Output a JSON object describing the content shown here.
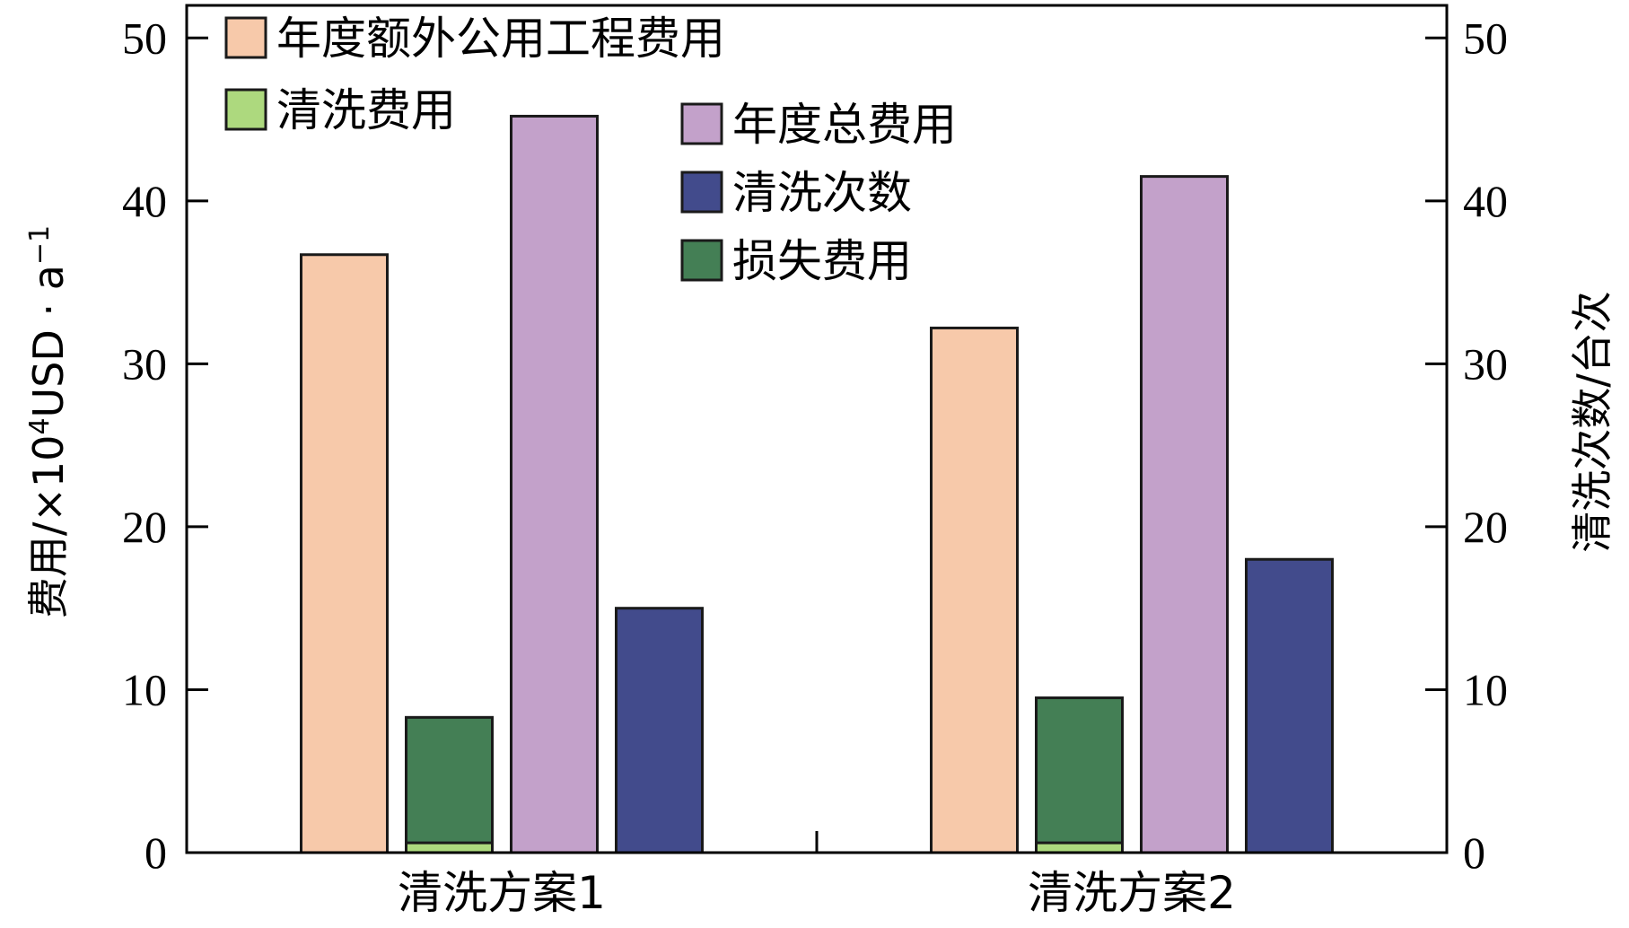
{
  "chart_data": {
    "type": "bar",
    "categories": [
      "清洗方案1",
      "清洗方案2"
    ],
    "series": [
      {
        "name": "年度额外公用工程费用",
        "values": [
          36.7,
          32.2
        ],
        "color": "#f7c9aa",
        "axis": "left"
      },
      {
        "name": "损失费用",
        "values": [
          8.3,
          9.5
        ],
        "color": "#447f55",
        "axis": "left"
      },
      {
        "name": "清洗费用",
        "values": [
          0.6,
          0.6
        ],
        "color": "#add97e",
        "axis": "left"
      },
      {
        "name": "年度总费用",
        "values": [
          45.2,
          41.5
        ],
        "color": "#c3a1ca",
        "axis": "left"
      },
      {
        "name": "清洗次数",
        "values": [
          15,
          18
        ],
        "color": "#424b8c",
        "axis": "right"
      }
    ],
    "ylabel_parts": {
      "prefix": "费用/×10",
      "exponent": "4",
      "middle": "USD · a",
      "suffix_sup": "−1"
    },
    "y2label": "清洗次数/台次",
    "ylim": [
      0,
      52
    ],
    "y2lim": [
      0,
      52
    ],
    "yticks": [
      "0",
      "10",
      "20",
      "30",
      "40",
      "50"
    ],
    "y2ticks": [
      "0",
      "10",
      "20",
      "30",
      "40",
      "50"
    ],
    "grid": false,
    "legend_placement": "top"
  }
}
